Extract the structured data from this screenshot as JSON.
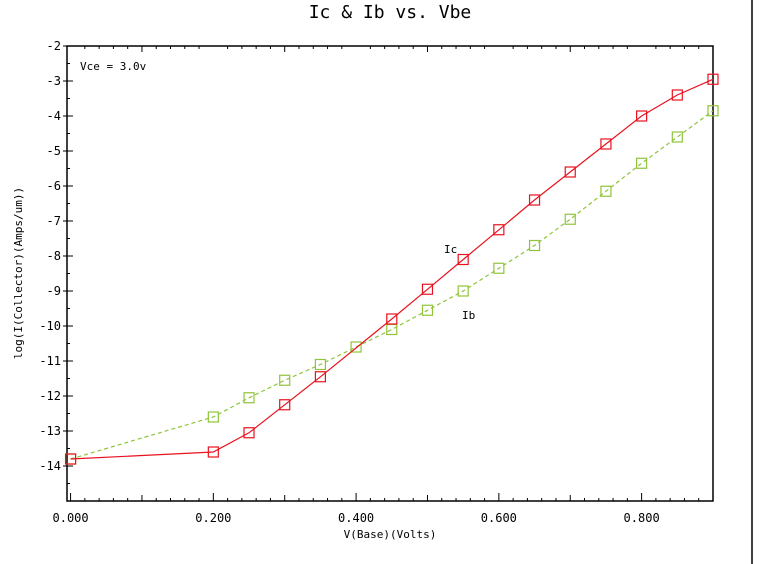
{
  "chart_data": {
    "type": "line",
    "title": "Ic & Ib vs. Vbe",
    "xlabel": "V(Base)(Volts)",
    "ylabel": "log(I(Collector)(Amps/um))",
    "xlim": [
      -0.005,
      0.9
    ],
    "ylim": [
      -15,
      -2
    ],
    "x_ticks": [
      "0.000",
      "0.200",
      "0.400",
      "0.600",
      "0.800"
    ],
    "y_ticks": [
      "-2",
      "-3",
      "-4",
      "-5",
      "-6",
      "-7",
      "-8",
      "-9",
      "-10",
      "-11",
      "-12",
      "-13",
      "-14"
    ],
    "grid": false,
    "annotation": "Vce = 3.0v",
    "series": [
      {
        "name": "Ic",
        "color": "#e8121e",
        "style": "solid",
        "marker": "square",
        "x": [
          0.0,
          0.2,
          0.25,
          0.3,
          0.35,
          0.45,
          0.5,
          0.55,
          0.6,
          0.65,
          0.7,
          0.75,
          0.8,
          0.85,
          0.9
        ],
        "y": [
          -13.8,
          -13.6,
          -13.05,
          -12.25,
          -11.45,
          -9.8,
          -8.95,
          -8.1,
          -7.25,
          -6.4,
          -5.6,
          -4.8,
          -4.0,
          -3.4,
          -2.95
        ]
      },
      {
        "name": "Ib",
        "color": "#8fc43a",
        "style": "dashed",
        "marker": "square",
        "x": [
          0.0,
          0.2,
          0.25,
          0.3,
          0.35,
          0.4,
          0.45,
          0.5,
          0.55,
          0.6,
          0.65,
          0.7,
          0.75,
          0.8,
          0.85,
          0.9
        ],
        "y": [
          -13.8,
          -12.6,
          -12.05,
          -11.55,
          -11.1,
          -10.6,
          -10.1,
          -9.55,
          -9.0,
          -8.35,
          -7.7,
          -6.95,
          -6.15,
          -5.35,
          -4.6,
          -3.85
        ]
      }
    ]
  }
}
